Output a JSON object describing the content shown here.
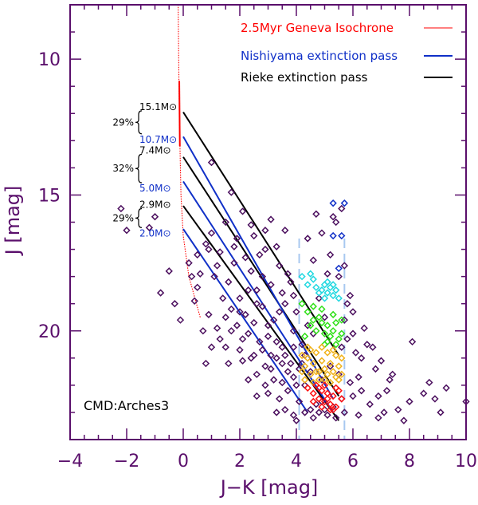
{
  "chart_data": {
    "type": "scatter",
    "title": "",
    "xlabel": "J−K [mag]",
    "ylabel": "J [mag]",
    "xlim": [
      -4,
      10
    ],
    "ylim": [
      24,
      8
    ],
    "y_inverted": true,
    "x_ticks": [
      -4,
      -2,
      0,
      2,
      4,
      6,
      8,
      10
    ],
    "x_tick_labels": [
      "−4",
      "−2",
      "0",
      "2",
      "4",
      "6",
      "8",
      "10"
    ],
    "y_ticks": [
      10,
      15,
      20
    ],
    "y_tick_labels": [
      "10",
      "15",
      "20"
    ],
    "field_label": "CMD:Arches3",
    "legend": [
      {
        "label": "2.5Myr Geneva Isochrone",
        "color": "#ff0000"
      },
      {
        "label": "Nishiyama extinction pass",
        "color": "#1030c8"
      },
      {
        "label": "Rieke extinction pass",
        "color": "#000000"
      }
    ],
    "selection_bounds_jk": [
      4.1,
      5.7
    ],
    "isochrone": [
      [
        0.6,
        19.5
      ],
      [
        0.2,
        18.0
      ],
      [
        0.0,
        16.5
      ],
      [
        -0.08,
        15.0
      ],
      [
        -0.12,
        13.0
      ],
      [
        -0.15,
        11.0
      ],
      [
        -0.18,
        8.0
      ]
    ],
    "rieke_passes": [
      {
        "start": [
          0.0,
          11.95
        ],
        "end": [
          5.5,
          20.9
        ]
      },
      {
        "start": [
          0.0,
          13.6
        ],
        "end": [
          5.5,
          22.4
        ]
      },
      {
        "start": [
          0.0,
          15.4
        ],
        "end": [
          5.5,
          23.3
        ]
      }
    ],
    "nishiyama_passes": [
      {
        "start": [
          0.0,
          12.85
        ],
        "end": [
          5.3,
          22.5
        ]
      },
      {
        "start": [
          0.0,
          14.5
        ],
        "end": [
          5.3,
          23.0
        ]
      },
      {
        "start": [
          0.0,
          16.25
        ],
        "end": [
          4.4,
          23.0
        ]
      }
    ],
    "mass_annotations": [
      {
        "rieke_mass": "15.1",
        "nishiyama_mass": "10.7",
        "percent": "29%",
        "unit": "M⊙",
        "j_top": 11.9,
        "j_bottom": 12.75
      },
      {
        "rieke_mass": "7.4",
        "nishiyama_mass": "5.0",
        "percent": "32%",
        "unit": "M⊙",
        "j_top": 13.5,
        "j_bottom": 14.55
      },
      {
        "rieke_mass": "2.9",
        "nishiyama_mass": "2.0",
        "percent": "29%",
        "unit": "M⊙",
        "j_top": 15.5,
        "j_bottom": 16.2
      }
    ],
    "colors": {
      "field": "#4b0f5e",
      "cyan": "#20d8e0",
      "green": "#30e018",
      "orange": "#f0b218",
      "red": "#ff1010",
      "blue_bin": "#1030c8",
      "bounds": "#a8c8f0",
      "axes": "#5a0f6b",
      "cmd": "#1c2ecc"
    },
    "stars_field": [
      [
        -2.2,
        15.5
      ],
      [
        -2.0,
        16.3
      ],
      [
        -1.2,
        16.2
      ],
      [
        -1.0,
        15.8
      ],
      [
        1.0,
        13.8
      ],
      [
        -0.5,
        17.8
      ],
      [
        -0.8,
        18.6
      ],
      [
        -0.3,
        19.0
      ],
      [
        -0.1,
        19.6
      ],
      [
        0.5,
        18.4
      ],
      [
        0.5,
        17.2
      ],
      [
        0.8,
        16.8
      ],
      [
        1.0,
        16.4
      ],
      [
        1.3,
        17.1
      ],
      [
        1.5,
        16.0
      ],
      [
        1.6,
        18.2
      ],
      [
        1.8,
        17.5
      ],
      [
        1.9,
        16.6
      ],
      [
        2.0,
        18.8
      ],
      [
        2.2,
        19.4
      ],
      [
        2.4,
        17.8
      ],
      [
        2.5,
        16.5
      ],
      [
        2.6,
        18.5
      ],
      [
        2.8,
        19.1
      ],
      [
        2.9,
        17.0
      ],
      [
        3.0,
        20.2
      ],
      [
        3.1,
        18.3
      ],
      [
        3.2,
        19.6
      ],
      [
        3.3,
        21.0
      ],
      [
        3.4,
        17.6
      ],
      [
        3.5,
        20.6
      ],
      [
        3.6,
        19.0
      ],
      [
        3.7,
        21.5
      ],
      [
        3.8,
        18.2
      ],
      [
        3.9,
        20.0
      ],
      [
        4.0,
        22.0
      ],
      [
        3.2,
        21.8
      ],
      [
        2.7,
        20.4
      ],
      [
        2.3,
        20.1
      ],
      [
        1.9,
        19.8
      ],
      [
        1.7,
        19.2
      ],
      [
        1.4,
        18.8
      ],
      [
        1.1,
        18.0
      ],
      [
        0.9,
        19.4
      ],
      [
        0.7,
        20.0
      ],
      [
        1.2,
        19.9
      ],
      [
        1.5,
        20.6
      ],
      [
        2.1,
        21.1
      ],
      [
        2.6,
        21.6
      ],
      [
        3.0,
        22.3
      ],
      [
        3.4,
        22.5
      ],
      [
        3.6,
        22.9
      ],
      [
        3.9,
        23.1
      ],
      [
        4.1,
        22.6
      ],
      [
        4.2,
        21.2
      ],
      [
        4.3,
        23.0
      ],
      [
        4.0,
        19.3
      ],
      [
        3.7,
        17.9
      ],
      [
        3.5,
        18.6
      ],
      [
        2.8,
        18.0
      ],
      [
        2.5,
        19.7
      ],
      [
        2.0,
        20.7
      ],
      [
        1.6,
        21.2
      ],
      [
        1.3,
        20.3
      ],
      [
        0.4,
        18.9
      ],
      [
        0.2,
        17.5
      ],
      [
        0.6,
        17.9
      ],
      [
        1.8,
        16.9
      ],
      [
        2.2,
        17.3
      ],
      [
        2.7,
        17.2
      ],
      [
        3.3,
        16.9
      ],
      [
        4.4,
        16.6
      ],
      [
        4.6,
        17.4
      ],
      [
        4.8,
        18.8
      ],
      [
        5.0,
        19.5
      ],
      [
        5.2,
        17.2
      ],
      [
        5.4,
        16.0
      ],
      [
        5.6,
        15.5
      ],
      [
        5.7,
        17.6
      ],
      [
        5.9,
        18.7
      ],
      [
        6.0,
        19.3
      ],
      [
        6.1,
        20.8
      ],
      [
        6.2,
        21.7
      ],
      [
        6.3,
        22.2
      ],
      [
        6.5,
        20.5
      ],
      [
        6.6,
        22.7
      ],
      [
        6.8,
        21.4
      ],
      [
        6.9,
        22.4
      ],
      [
        7.1,
        23.0
      ],
      [
        7.2,
        22.2
      ],
      [
        7.4,
        21.6
      ],
      [
        7.6,
        22.9
      ],
      [
        7.8,
        23.3
      ],
      [
        8.0,
        22.6
      ],
      [
        8.1,
        20.4
      ],
      [
        8.5,
        22.3
      ],
      [
        8.7,
        21.9
      ],
      [
        8.9,
        22.5
      ],
      [
        9.1,
        23.0
      ],
      [
        9.3,
        22.1
      ],
      [
        10.0,
        22.6
      ],
      [
        6.4,
        19.9
      ],
      [
        6.7,
        20.6
      ],
      [
        7.0,
        21.1
      ],
      [
        5.8,
        20.3
      ],
      [
        5.5,
        21.6
      ],
      [
        5.1,
        23.1
      ],
      [
        4.8,
        23.0
      ],
      [
        4.5,
        22.9
      ],
      [
        4.3,
        22.0
      ],
      [
        4.2,
        20.5
      ],
      [
        4.4,
        19.8
      ],
      [
        4.6,
        20.1
      ],
      [
        4.5,
        21.5
      ],
      [
        4.7,
        22.7
      ],
      [
        5.0,
        22.9
      ],
      [
        5.3,
        22.8
      ],
      [
        5.6,
        22.5
      ],
      [
        5.9,
        21.9
      ],
      [
        6.0,
        22.4
      ],
      [
        3.8,
        21.2
      ],
      [
        3.5,
        21.9
      ],
      [
        3.1,
        20.9
      ],
      [
        2.9,
        21.3
      ],
      [
        2.4,
        21.0
      ],
      [
        2.0,
        19.3
      ],
      [
        1.5,
        19.5
      ],
      [
        1.2,
        17.6
      ],
      [
        0.9,
        17.0
      ],
      [
        0.3,
        18.0
      ],
      [
        2.3,
        18.5
      ],
      [
        2.6,
        19.0
      ],
      [
        3.0,
        19.8
      ],
      [
        3.3,
        20.4
      ],
      [
        3.6,
        20.9
      ],
      [
        3.9,
        21.7
      ],
      [
        4.1,
        21.4
      ],
      [
        3.7,
        22.2
      ],
      [
        3.3,
        23.0
      ],
      [
        2.9,
        22.0
      ],
      [
        2.6,
        22.4
      ],
      [
        2.3,
        21.8
      ],
      [
        4.0,
        23.3
      ],
      [
        4.6,
        23.2
      ],
      [
        5.2,
        21.3
      ],
      [
        5.6,
        20.6
      ],
      [
        5.8,
        19.0
      ],
      [
        5.5,
        18.0
      ],
      [
        5.1,
        17.9
      ],
      [
        5.3,
        15.8
      ],
      [
        4.9,
        16.4
      ],
      [
        4.7,
        15.7
      ],
      [
        3.6,
        16.3
      ],
      [
        3.1,
        15.9
      ],
      [
        2.1,
        15.6
      ],
      [
        1.7,
        14.9
      ],
      [
        2.4,
        16.1
      ],
      [
        2.9,
        16.3
      ],
      [
        3.4,
        19.3
      ],
      [
        3.9,
        18.7
      ],
      [
        1.0,
        20.6
      ],
      [
        0.8,
        21.2
      ],
      [
        1.7,
        20.0
      ],
      [
        2.1,
        20.3
      ],
      [
        2.5,
        20.9
      ],
      [
        2.8,
        20.7
      ],
      [
        3.1,
        21.4
      ],
      [
        3.5,
        21.2
      ],
      [
        3.9,
        20.6
      ],
      [
        4.3,
        20.9
      ],
      [
        6.2,
        23.1
      ],
      [
        6.9,
        23.2
      ],
      [
        7.3,
        21.8
      ],
      [
        5.7,
        23.0
      ],
      [
        5.4,
        23.2
      ],
      [
        4.9,
        22.6
      ],
      [
        6.3,
        21.0
      ],
      [
        6.0,
        20.1
      ],
      [
        5.7,
        19.6
      ],
      [
        4.9,
        21.8
      ]
    ],
    "stars_cyan": [
      [
        4.2,
        18.0
      ],
      [
        4.4,
        18.3
      ],
      [
        4.6,
        18.1
      ],
      [
        4.8,
        18.6
      ],
      [
        4.9,
        18.5
      ],
      [
        5.0,
        18.3
      ],
      [
        5.1,
        18.6
      ],
      [
        5.2,
        18.4
      ],
      [
        5.3,
        18.7
      ],
      [
        5.4,
        18.5
      ],
      [
        5.5,
        18.8
      ],
      [
        5.1,
        18.2
      ],
      [
        4.7,
        18.4
      ],
      [
        5.3,
        18.3
      ],
      [
        4.5,
        17.9
      ],
      [
        5.0,
        18.8
      ]
    ],
    "stars_green": [
      [
        4.2,
        19.0
      ],
      [
        4.4,
        19.3
      ],
      [
        4.6,
        19.1
      ],
      [
        4.8,
        19.5
      ],
      [
        4.5,
        19.8
      ],
      [
        4.7,
        20.0
      ],
      [
        4.9,
        19.7
      ],
      [
        5.0,
        20.1
      ],
      [
        5.1,
        19.8
      ],
      [
        5.2,
        20.2
      ],
      [
        5.3,
        20.0
      ],
      [
        5.4,
        19.7
      ],
      [
        5.5,
        20.3
      ],
      [
        5.6,
        20.1
      ],
      [
        5.1,
        20.4
      ],
      [
        4.3,
        20.2
      ],
      [
        5.3,
        19.4
      ],
      [
        5.6,
        19.6
      ],
      [
        4.9,
        19.2
      ],
      [
        5.0,
        20.5
      ],
      [
        5.4,
        20.5
      ],
      [
        4.6,
        19.6
      ]
    ],
    "stars_orange": [
      [
        4.2,
        20.9
      ],
      [
        4.3,
        21.3
      ],
      [
        4.4,
        21.0
      ],
      [
        4.5,
        21.6
      ],
      [
        4.6,
        21.2
      ],
      [
        4.7,
        20.8
      ],
      [
        4.8,
        21.5
      ],
      [
        4.9,
        21.1
      ],
      [
        5.0,
        21.4
      ],
      [
        5.1,
        20.8
      ],
      [
        5.2,
        21.2
      ],
      [
        5.3,
        21.5
      ],
      [
        5.4,
        20.9
      ],
      [
        5.5,
        21.3
      ],
      [
        5.6,
        21.6
      ],
      [
        4.5,
        20.7
      ],
      [
        4.8,
        21.8
      ],
      [
        5.0,
        21.8
      ],
      [
        5.3,
        20.7
      ],
      [
        4.3,
        21.8
      ],
      [
        4.6,
        21.9
      ],
      [
        5.1,
        21.6
      ],
      [
        5.5,
        21.8
      ],
      [
        4.4,
        20.6
      ],
      [
        5.6,
        21.0
      ],
      [
        4.9,
        20.6
      ],
      [
        4.2,
        21.5
      ],
      [
        5.4,
        21.7
      ],
      [
        4.7,
        21.5
      ],
      [
        5.2,
        21.9
      ]
    ],
    "stars_red": [
      [
        4.4,
        22.1
      ],
      [
        4.6,
        22.3
      ],
      [
        4.7,
        22.0
      ],
      [
        4.8,
        22.5
      ],
      [
        4.9,
        22.2
      ],
      [
        5.0,
        22.6
      ],
      [
        5.1,
        22.3
      ],
      [
        5.2,
        22.7
      ],
      [
        5.3,
        22.4
      ],
      [
        5.4,
        22.8
      ],
      [
        5.5,
        22.2
      ],
      [
        5.0,
        22.0
      ],
      [
        5.2,
        22.9
      ],
      [
        4.9,
        22.8
      ],
      [
        5.4,
        22.1
      ],
      [
        4.6,
        22.6
      ],
      [
        5.6,
        22.5
      ],
      [
        5.1,
        22.5
      ],
      [
        4.8,
        22.1
      ],
      [
        5.3,
        22.9
      ]
    ],
    "stars_blue": [
      [
        5.3,
        15.3
      ],
      [
        5.7,
        15.3
      ],
      [
        5.3,
        16.5
      ],
      [
        5.6,
        16.5
      ],
      [
        5.5,
        17.7
      ]
    ]
  }
}
